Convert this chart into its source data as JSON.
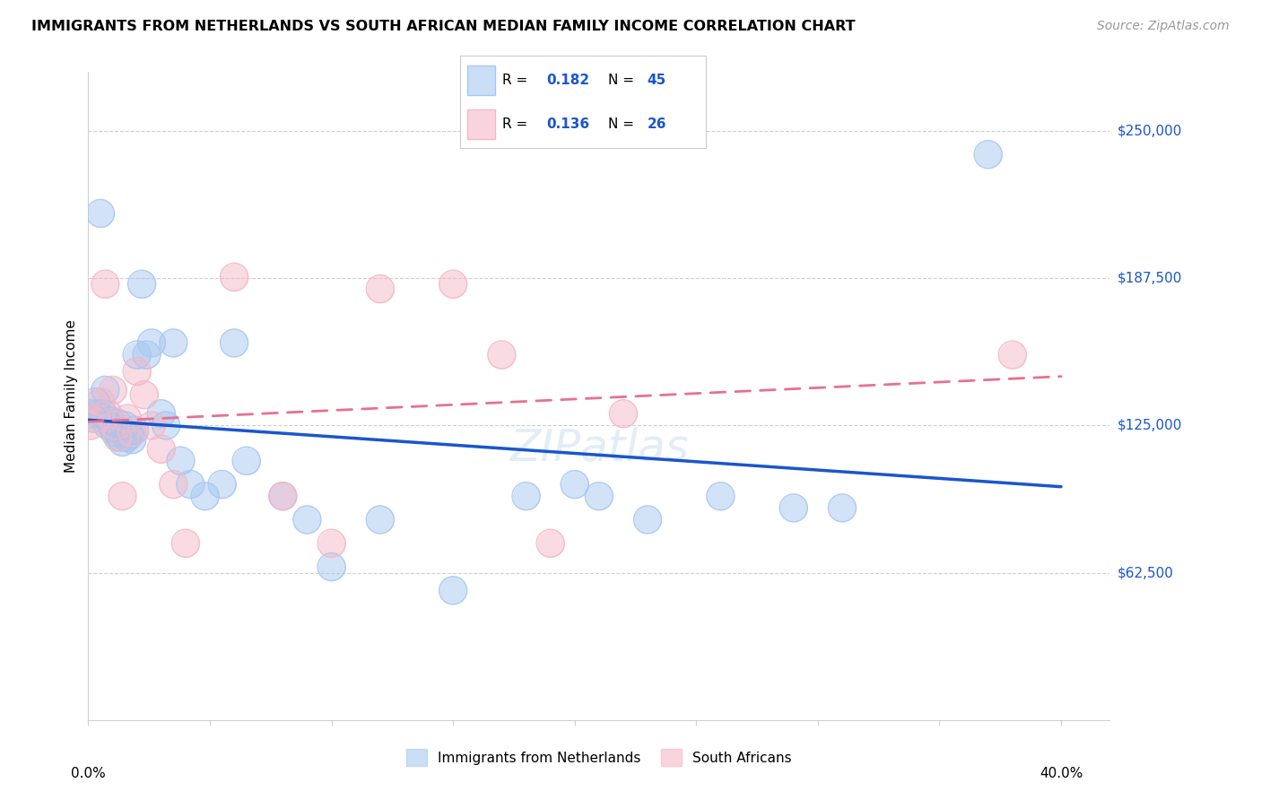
{
  "title": "IMMIGRANTS FROM NETHERLANDS VS SOUTH AFRICAN MEDIAN FAMILY INCOME CORRELATION CHART",
  "source": "Source: ZipAtlas.com",
  "ylabel": "Median Family Income",
  "yticks": [
    62500,
    125000,
    187500,
    250000
  ],
  "ytick_labels": [
    "$62,500",
    "$125,000",
    "$187,500",
    "$250,000"
  ],
  "xlim": [
    0.0,
    0.42
  ],
  "ylim": [
    0,
    275000
  ],
  "legend_r1": "0.182",
  "legend_n1": "45",
  "legend_r2": "0.136",
  "legend_n2": "26",
  "legend_label1": "Immigrants from Netherlands",
  "legend_label2": "South Africans",
  "blue_fill": "#A8C8F0",
  "pink_fill": "#F5B8C8",
  "line_blue": "#1A56CC",
  "line_pink": "#E87090",
  "axis_color": "#d0d0d0",
  "background": "#FFFFFF",
  "blue_x": [
    0.001,
    0.002,
    0.003,
    0.004,
    0.005,
    0.006,
    0.007,
    0.008,
    0.009,
    0.01,
    0.011,
    0.012,
    0.013,
    0.014,
    0.015,
    0.016,
    0.017,
    0.018,
    0.019,
    0.02,
    0.022,
    0.024,
    0.026,
    0.03,
    0.032,
    0.035,
    0.038,
    0.042,
    0.048,
    0.055,
    0.06,
    0.065,
    0.08,
    0.09,
    0.1,
    0.12,
    0.15,
    0.18,
    0.2,
    0.21,
    0.23,
    0.26,
    0.29,
    0.31,
    0.37
  ],
  "blue_y": [
    130000,
    128000,
    135000,
    130000,
    215000,
    130000,
    140000,
    125000,
    127000,
    124000,
    122000,
    126000,
    120000,
    118000,
    125000,
    120000,
    121000,
    119000,
    123000,
    155000,
    185000,
    155000,
    160000,
    130000,
    125000,
    160000,
    110000,
    100000,
    95000,
    100000,
    160000,
    110000,
    95000,
    85000,
    65000,
    85000,
    55000,
    95000,
    100000,
    95000,
    85000,
    95000,
    90000,
    90000,
    240000
  ],
  "pink_x": [
    0.001,
    0.003,
    0.005,
    0.007,
    0.008,
    0.01,
    0.011,
    0.012,
    0.014,
    0.016,
    0.018,
    0.02,
    0.023,
    0.026,
    0.03,
    0.035,
    0.04,
    0.06,
    0.08,
    0.1,
    0.12,
    0.15,
    0.17,
    0.19,
    0.22,
    0.38
  ],
  "pink_y": [
    125000,
    128000,
    135000,
    185000,
    130000,
    140000,
    125000,
    120000,
    95000,
    128000,
    122000,
    148000,
    138000,
    125000,
    115000,
    100000,
    75000,
    188000,
    95000,
    75000,
    183000,
    185000,
    155000,
    75000,
    130000,
    155000
  ]
}
